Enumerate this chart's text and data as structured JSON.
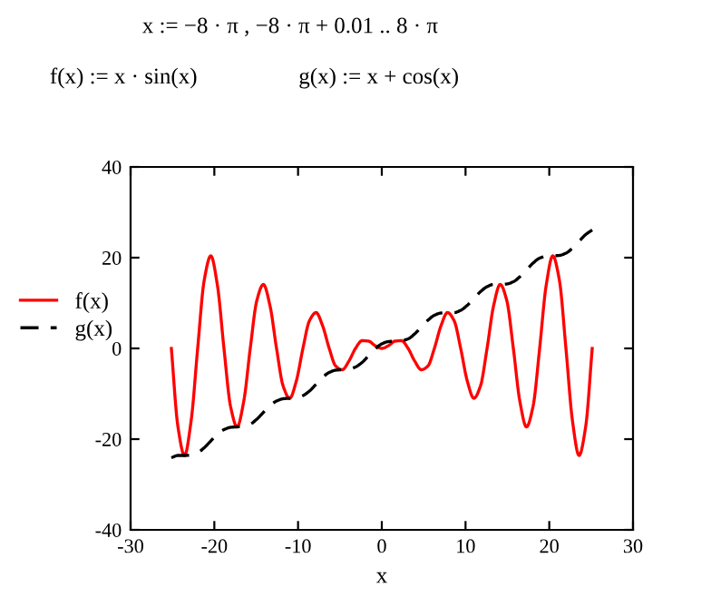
{
  "chart_data": {
    "type": "line",
    "annotations": [
      "x := −8 · π , −8 · π + 0.01 .. 8 · π",
      "f(x) := x · sin(x)",
      "g(x) := x + cos(x)"
    ],
    "xlabel": "x",
    "x": [
      -25.13,
      -24.35,
      -23.56,
      -22.78,
      -21.99,
      -21.21,
      -20.42,
      -19.63,
      -18.85,
      -18.06,
      -17.28,
      -16.49,
      -15.71,
      -14.92,
      -14.14,
      -13.35,
      -12.57,
      -11.78,
      -11.0,
      -10.21,
      -9.42,
      -8.64,
      -7.85,
      -7.07,
      -6.28,
      -5.5,
      -4.71,
      -3.93,
      -3.14,
      -2.36,
      -1.57,
      -0.79,
      0,
      0.79,
      1.57,
      2.36,
      3.14,
      3.93,
      4.71,
      5.5,
      6.28,
      7.07,
      7.85,
      8.64,
      9.42,
      10.21,
      11.0,
      11.78,
      12.57,
      13.35,
      14.14,
      14.92,
      15.71,
      16.49,
      17.28,
      18.06,
      18.85,
      19.63,
      20.42,
      21.21,
      21.99,
      22.78,
      23.56,
      24.35,
      25.13
    ],
    "series": [
      {
        "name": "f(x)",
        "color": "#ff0000",
        "line_style": "solid",
        "values": [
          0,
          -17.2,
          -23.6,
          -16.1,
          0,
          15,
          20.4,
          13.9,
          0,
          -12.8,
          -17.3,
          -11.7,
          0,
          10.6,
          14.1,
          9.4,
          0,
          -8.3,
          -11,
          -7.2,
          0,
          6.1,
          7.9,
          5,
          0,
          -3.9,
          -4.7,
          -2.8,
          0,
          1.7,
          1.6,
          0.6,
          0,
          0.6,
          1.6,
          1.7,
          0,
          -2.8,
          -4.7,
          -3.9,
          0,
          5,
          7.9,
          6.1,
          0,
          -7.2,
          -11,
          -8.3,
          0,
          9.4,
          14.1,
          10.6,
          0,
          -11.7,
          -17.3,
          -12.8,
          0,
          13.9,
          20.4,
          15,
          0,
          -16.1,
          -23.6,
          -17.2,
          0
        ]
      },
      {
        "name": "g(x)",
        "color": "#000000",
        "line_style": "dashed",
        "values": [
          -24.1,
          -23.6,
          -23.6,
          -23.5,
          -23,
          -21.9,
          -20.4,
          -18.9,
          -17.9,
          -17.4,
          -17.3,
          -17.2,
          -16.7,
          -15.6,
          -14.1,
          -12.6,
          -11.6,
          -11.1,
          -11,
          -10.9,
          -10.4,
          -9.4,
          -7.9,
          -6.4,
          -5.3,
          -4.8,
          -4.7,
          -4.6,
          -4.1,
          -3.1,
          -1.6,
          -0.1,
          1,
          1.5,
          1.6,
          1.7,
          2.1,
          3.2,
          4.7,
          6.2,
          7.3,
          7.8,
          7.9,
          7.9,
          8.4,
          9.5,
          11,
          12.5,
          13.6,
          14.1,
          14.1,
          14.2,
          14.7,
          15.8,
          17.3,
          18.8,
          19.9,
          20.3,
          20.4,
          20.5,
          21,
          22.1,
          23.6,
          25.1,
          26.1
        ]
      }
    ],
    "xlim": [
      -30,
      30
    ],
    "xticks": [
      -30,
      -20,
      -10,
      0,
      10,
      20,
      30
    ],
    "ylim": [
      -40,
      40
    ],
    "yticks": [
      -40,
      -20,
      0,
      20,
      40
    ],
    "grid": false,
    "legend": "left"
  }
}
